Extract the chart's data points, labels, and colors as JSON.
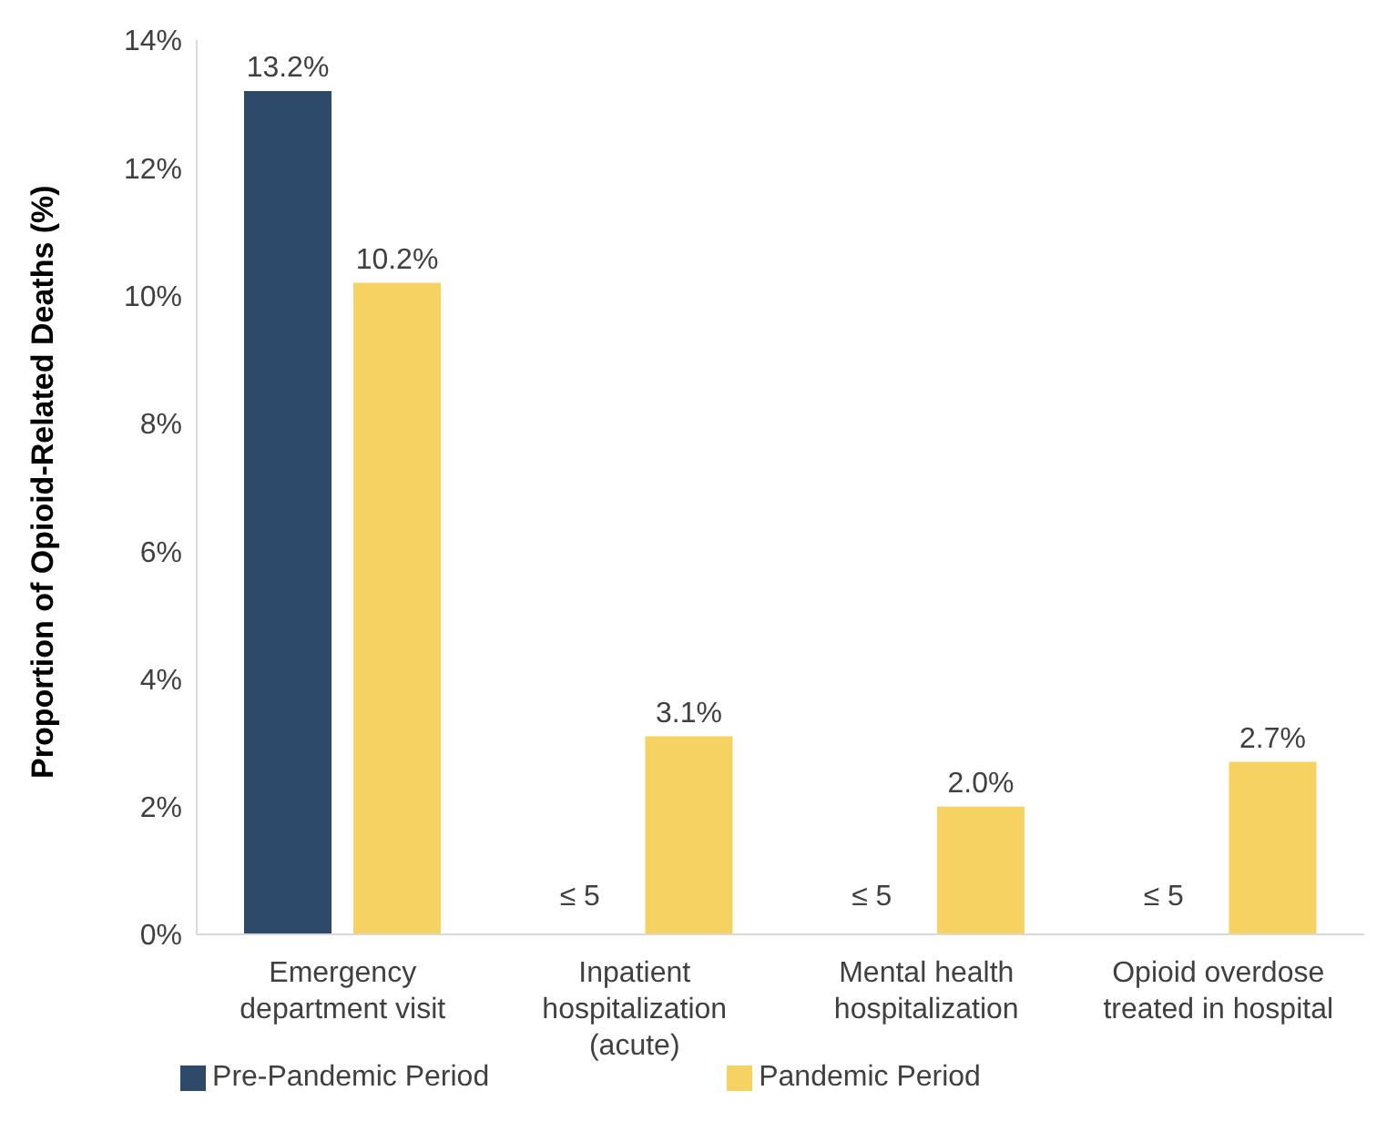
{
  "chart_data": {
    "type": "bar",
    "ylabel": "Proportion of Opioid-Related Deaths (%)",
    "categories": [
      "Emergency department visit",
      "Inpatient hospitalization (acute)",
      "Mental health hospitalization",
      "Opioid overdose treated in hospital"
    ],
    "series": [
      {
        "name": "Pre-Pandemic Period",
        "color": "#2e4a6b",
        "values": [
          13.2,
          null,
          null,
          null
        ],
        "value_labels": [
          "13.2%",
          "≤ 5",
          "≤ 5",
          "≤ 5"
        ]
      },
      {
        "name": "Pandemic Period",
        "color": "#f5d262",
        "values": [
          10.2,
          3.1,
          2.0,
          2.7
        ],
        "value_labels": [
          "10.2%",
          "3.1%",
          "2.0%",
          "2.7%"
        ]
      }
    ],
    "ylim": [
      0,
      14
    ],
    "yticks": [
      {
        "value": 0,
        "label": "0%"
      },
      {
        "value": 2,
        "label": "2%"
      },
      {
        "value": 4,
        "label": "4%"
      },
      {
        "value": 6,
        "label": "6%"
      },
      {
        "value": 8,
        "label": "8%"
      },
      {
        "value": 10,
        "label": "10%"
      },
      {
        "value": 12,
        "label": "12%"
      },
      {
        "value": 14,
        "label": "14%"
      }
    ],
    "grid": false,
    "legend": "bottom"
  }
}
